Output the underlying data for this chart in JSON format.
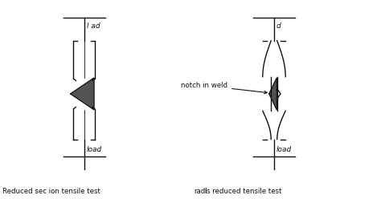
{
  "fig_width": 4.74,
  "fig_height": 2.48,
  "dpi": 100,
  "bg_color": "#ffffff",
  "line_color": "#111111",
  "fill_color": "#404040",
  "label_left_caption": "Reduced sec ion tensile test",
  "label_right_caption": "radiˡs reduced tensile test",
  "label_load_top_left": "l ad",
  "label_load_top_right": "d",
  "label_load_bottom": "load",
  "label_notch": "notch in weld"
}
